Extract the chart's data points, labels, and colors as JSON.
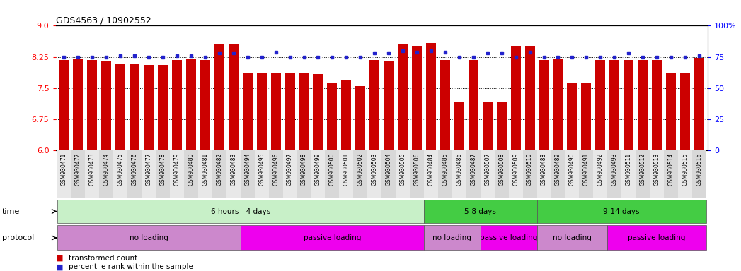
{
  "title": "GDS4563 / 10902552",
  "samples": [
    "GSM930471",
    "GSM930472",
    "GSM930473",
    "GSM930474",
    "GSM930475",
    "GSM930476",
    "GSM930477",
    "GSM930478",
    "GSM930479",
    "GSM930480",
    "GSM930481",
    "GSM930482",
    "GSM930483",
    "GSM930494",
    "GSM930495",
    "GSM930496",
    "GSM930497",
    "GSM930498",
    "GSM930499",
    "GSM930500",
    "GSM930501",
    "GSM930502",
    "GSM930503",
    "GSM930504",
    "GSM930505",
    "GSM930506",
    "GSM930484",
    "GSM930485",
    "GSM930486",
    "GSM930487",
    "GSM930507",
    "GSM930508",
    "GSM930509",
    "GSM930510",
    "GSM930488",
    "GSM930489",
    "GSM930490",
    "GSM930491",
    "GSM930492",
    "GSM930493",
    "GSM930511",
    "GSM930512",
    "GSM930513",
    "GSM930514",
    "GSM930515",
    "GSM930516"
  ],
  "bar_values": [
    8.18,
    8.19,
    8.18,
    8.16,
    8.08,
    8.08,
    8.05,
    8.05,
    8.18,
    8.19,
    8.18,
    8.55,
    8.55,
    7.85,
    7.85,
    7.87,
    7.85,
    7.85,
    7.83,
    7.62,
    7.68,
    7.55,
    8.18,
    8.16,
    8.55,
    8.52,
    8.58,
    8.18,
    7.18,
    8.18,
    7.18,
    7.18,
    8.52,
    8.52,
    8.18,
    8.19,
    7.62,
    7.62,
    8.18,
    8.18,
    8.18,
    8.18,
    8.18,
    7.85,
    7.85,
    8.22
  ],
  "percentile_values": [
    75,
    75,
    75,
    75,
    76,
    76,
    75,
    75,
    76,
    76,
    75,
    78,
    78,
    75,
    75,
    79,
    75,
    75,
    75,
    75,
    75,
    75,
    78,
    78,
    80,
    79,
    80,
    79,
    75,
    75,
    78,
    78,
    75,
    79,
    75,
    75,
    75,
    75,
    75,
    75,
    78,
    75,
    75,
    75,
    75,
    76
  ],
  "ylim_left": [
    6.0,
    9.0
  ],
  "ylim_right": [
    0,
    100
  ],
  "yticks_left": [
    6.0,
    6.75,
    7.5,
    8.25,
    9.0
  ],
  "yticks_right": [
    0,
    25,
    50,
    75,
    100
  ],
  "bar_color": "#cc0000",
  "dot_color": "#2222cc",
  "background_color": "#ffffff",
  "time_groups": [
    {
      "label": "6 hours - 4 days",
      "start": 0,
      "end": 25,
      "color": "#c8f0c8"
    },
    {
      "label": "5-8 days",
      "start": 26,
      "end": 33,
      "color": "#44cc44"
    },
    {
      "label": "9-14 days",
      "start": 34,
      "end": 45,
      "color": "#44cc44"
    }
  ],
  "protocol_groups": [
    {
      "label": "no loading",
      "start": 0,
      "end": 12,
      "color": "#cc88cc"
    },
    {
      "label": "passive loading",
      "start": 13,
      "end": 25,
      "color": "#ee00ee"
    },
    {
      "label": "no loading",
      "start": 26,
      "end": 29,
      "color": "#cc88cc"
    },
    {
      "label": "passive loading",
      "start": 30,
      "end": 33,
      "color": "#ee00ee"
    },
    {
      "label": "no loading",
      "start": 34,
      "end": 38,
      "color": "#cc88cc"
    },
    {
      "label": "passive loading",
      "start": 39,
      "end": 45,
      "color": "#ee00ee"
    }
  ],
  "time_label": "time",
  "protocol_label": "protocol"
}
